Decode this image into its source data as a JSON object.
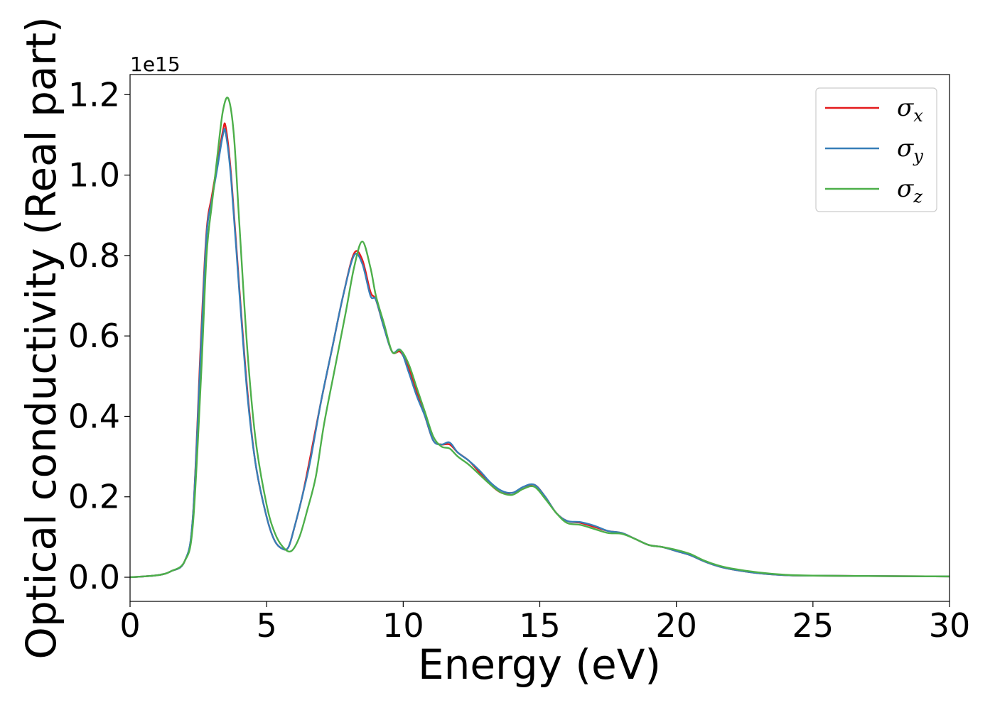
{
  "chart_data": {
    "type": "line",
    "title": "",
    "xlabel": "Energy (eV)",
    "ylabel": "Optical conductivity (Real part)",
    "y_offset_label": "1e15",
    "xlim": [
      0,
      30
    ],
    "ylim": [
      -0.06,
      1.25
    ],
    "xticks": [
      0,
      5,
      10,
      15,
      20,
      25,
      30
    ],
    "xtick_labels": [
      "0",
      "5",
      "10",
      "15",
      "20",
      "25",
      "30"
    ],
    "yticks": [
      0.0,
      0.2,
      0.4,
      0.6,
      0.8,
      1.0,
      1.2
    ],
    "ytick_labels": [
      "0.0",
      "0.2",
      "0.4",
      "0.6",
      "0.8",
      "1.0",
      "1.2"
    ],
    "grid": false,
    "legend_position": "top-right",
    "series": [
      {
        "name": "σx",
        "symbol": "σ",
        "sub": "x",
        "color": "#e41a1c",
        "x": [
          0,
          1,
          1.5,
          2.0,
          2.3,
          2.6,
          2.8,
          3.0,
          3.2,
          3.4,
          3.5,
          3.7,
          4.0,
          4.3,
          4.6,
          5.0,
          5.3,
          5.6,
          5.8,
          6.0,
          6.3,
          6.6,
          7.0,
          7.4,
          7.8,
          8.2,
          8.5,
          8.8,
          9.0,
          9.3,
          9.6,
          9.9,
          10.2,
          10.5,
          10.8,
          11.1,
          11.4,
          11.7,
          12.0,
          12.4,
          12.8,
          13.2,
          13.6,
          14.0,
          14.4,
          14.8,
          15.2,
          15.6,
          16.0,
          16.5,
          17.0,
          17.5,
          18.0,
          18.5,
          19.0,
          19.5,
          20.0,
          20.5,
          21.0,
          21.5,
          22.0,
          23.0,
          24.0,
          25.0,
          27.0,
          30.0
        ],
        "y": [
          0.0,
          0.005,
          0.015,
          0.04,
          0.15,
          0.6,
          0.86,
          0.95,
          1.03,
          1.11,
          1.12,
          1.0,
          0.72,
          0.46,
          0.28,
          0.15,
          0.09,
          0.07,
          0.075,
          0.12,
          0.2,
          0.3,
          0.44,
          0.57,
          0.7,
          0.805,
          0.79,
          0.71,
          0.69,
          0.62,
          0.56,
          0.56,
          0.52,
          0.46,
          0.4,
          0.34,
          0.33,
          0.33,
          0.31,
          0.29,
          0.26,
          0.23,
          0.21,
          0.21,
          0.22,
          0.23,
          0.2,
          0.16,
          0.14,
          0.135,
          0.125,
          0.115,
          0.11,
          0.095,
          0.08,
          0.075,
          0.065,
          0.055,
          0.04,
          0.028,
          0.02,
          0.01,
          0.005,
          0.004,
          0.003,
          0.002
        ]
      },
      {
        "name": "σy",
        "symbol": "σ",
        "sub": "y",
        "color": "#377eb8",
        "x": [
          0,
          1,
          1.5,
          2.0,
          2.3,
          2.6,
          2.8,
          3.0,
          3.2,
          3.4,
          3.5,
          3.7,
          4.0,
          4.3,
          4.6,
          5.0,
          5.3,
          5.6,
          5.8,
          6.0,
          6.3,
          6.6,
          7.0,
          7.4,
          7.8,
          8.2,
          8.5,
          8.8,
          9.0,
          9.3,
          9.6,
          9.9,
          10.2,
          10.5,
          10.8,
          11.1,
          11.4,
          11.7,
          12.0,
          12.4,
          12.8,
          13.2,
          13.6,
          14.0,
          14.4,
          14.8,
          15.2,
          15.6,
          16.0,
          16.5,
          17.0,
          17.5,
          18.0,
          18.5,
          19.0,
          19.5,
          20.0,
          20.5,
          21.0,
          21.5,
          22.0,
          23.0,
          24.0,
          25.0,
          27.0,
          30.0
        ],
        "y": [
          0.0,
          0.005,
          0.015,
          0.04,
          0.15,
          0.58,
          0.85,
          0.94,
          1.02,
          1.1,
          1.105,
          0.99,
          0.71,
          0.45,
          0.28,
          0.15,
          0.09,
          0.07,
          0.075,
          0.12,
          0.2,
          0.29,
          0.44,
          0.57,
          0.7,
          0.8,
          0.78,
          0.7,
          0.69,
          0.62,
          0.56,
          0.565,
          0.51,
          0.45,
          0.4,
          0.34,
          0.33,
          0.335,
          0.31,
          0.29,
          0.265,
          0.235,
          0.215,
          0.21,
          0.225,
          0.23,
          0.2,
          0.16,
          0.14,
          0.137,
          0.128,
          0.115,
          0.11,
          0.095,
          0.08,
          0.075,
          0.065,
          0.055,
          0.04,
          0.028,
          0.02,
          0.01,
          0.005,
          0.004,
          0.003,
          0.002
        ]
      },
      {
        "name": "σz",
        "symbol": "σ",
        "sub": "z",
        "color": "#4daf4a",
        "x": [
          0,
          1,
          1.5,
          2.0,
          2.3,
          2.6,
          2.8,
          3.0,
          3.2,
          3.4,
          3.6,
          3.8,
          4.0,
          4.3,
          4.6,
          5.0,
          5.3,
          5.6,
          5.9,
          6.2,
          6.5,
          6.8,
          7.1,
          7.5,
          7.9,
          8.2,
          8.5,
          8.8,
          9.0,
          9.3,
          9.6,
          9.9,
          10.2,
          10.5,
          10.8,
          11.1,
          11.4,
          11.7,
          12.0,
          12.4,
          12.8,
          13.2,
          13.6,
          14.0,
          14.4,
          14.8,
          15.2,
          15.6,
          16.0,
          16.5,
          17.0,
          17.5,
          18.0,
          18.5,
          19.0,
          19.5,
          20.0,
          20.5,
          21.0,
          21.5,
          22.0,
          23.0,
          24.0,
          25.0,
          27.0,
          30.0
        ],
        "y": [
          0.0,
          0.005,
          0.015,
          0.04,
          0.13,
          0.5,
          0.8,
          0.93,
          1.05,
          1.16,
          1.19,
          1.1,
          0.88,
          0.56,
          0.34,
          0.18,
          0.11,
          0.075,
          0.065,
          0.1,
          0.17,
          0.25,
          0.38,
          0.52,
          0.66,
          0.77,
          0.835,
          0.77,
          0.7,
          0.63,
          0.56,
          0.565,
          0.53,
          0.47,
          0.41,
          0.35,
          0.325,
          0.32,
          0.3,
          0.28,
          0.255,
          0.23,
          0.21,
          0.205,
          0.22,
          0.225,
          0.195,
          0.16,
          0.135,
          0.13,
          0.12,
          0.11,
          0.108,
          0.095,
          0.08,
          0.075,
          0.068,
          0.058,
          0.042,
          0.03,
          0.022,
          0.012,
          0.006,
          0.004,
          0.003,
          0.002
        ]
      }
    ]
  }
}
